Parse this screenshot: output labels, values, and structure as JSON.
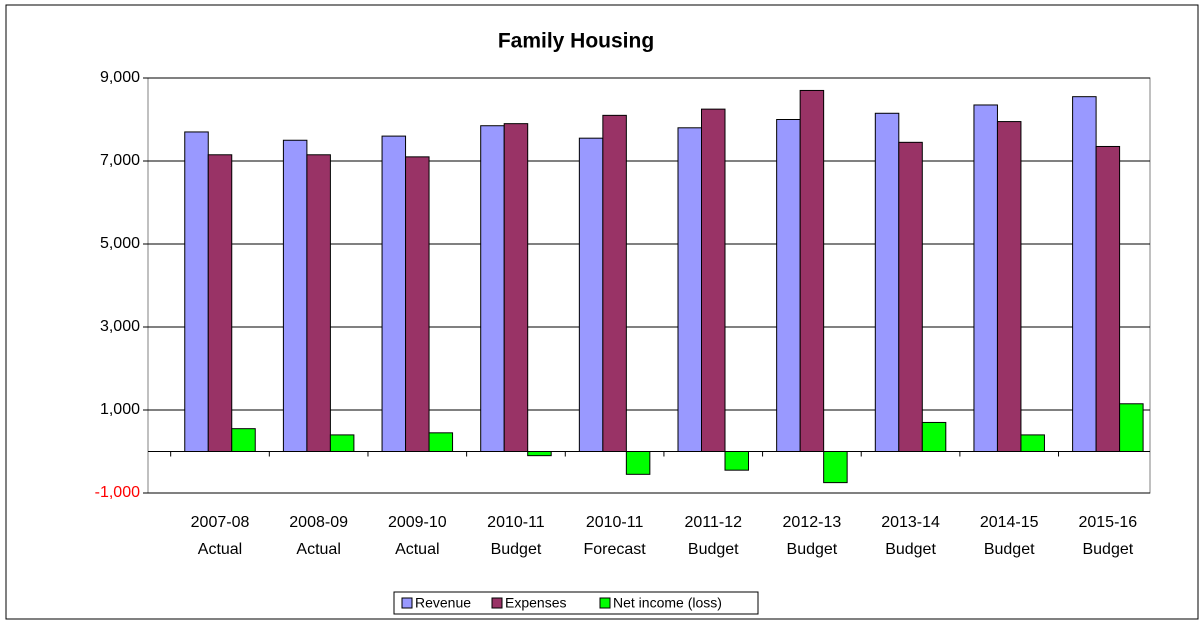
{
  "chart_data": {
    "type": "bar",
    "title": "Family Housing",
    "categories": [
      [
        "2007-08",
        "Actual"
      ],
      [
        "2008-09",
        "Actual"
      ],
      [
        "2009-10",
        "Actual"
      ],
      [
        "2010-11",
        "Budget"
      ],
      [
        "2010-11",
        "Forecast"
      ],
      [
        "2011-12",
        "Budget"
      ],
      [
        "2012-13",
        "Budget"
      ],
      [
        "2013-14",
        "Budget"
      ],
      [
        "2014-15",
        "Budget"
      ],
      [
        "2015-16",
        "Budget"
      ]
    ],
    "series": [
      {
        "name": "Revenue",
        "color": "#9999ff",
        "values": [
          7700,
          7500,
          7600,
          7850,
          7550,
          7800,
          8000,
          8150,
          8350,
          8550
        ]
      },
      {
        "name": "Expenses",
        "color": "#993366",
        "values": [
          7150,
          7150,
          7100,
          7900,
          8100,
          8250,
          8700,
          7450,
          7950,
          7350
        ]
      },
      {
        "name": "Net income (loss)",
        "color": "#00ff00",
        "values": [
          550,
          400,
          450,
          -100,
          -550,
          -450,
          -750,
          700,
          400,
          1150
        ]
      }
    ],
    "ylim": [
      -1000,
      9000
    ],
    "yticks": [
      {
        "value": -1000,
        "label": "-1,000"
      },
      {
        "value": 1000,
        "label": "1,000"
      },
      {
        "value": 3000,
        "label": "3,000"
      },
      {
        "value": 5000,
        "label": "5,000"
      },
      {
        "value": 7000,
        "label": "7,000"
      },
      {
        "value": 9000,
        "label": "9,000"
      }
    ],
    "negative_tick_color": "#ff0000",
    "grid": true,
    "legend": "bottom"
  }
}
